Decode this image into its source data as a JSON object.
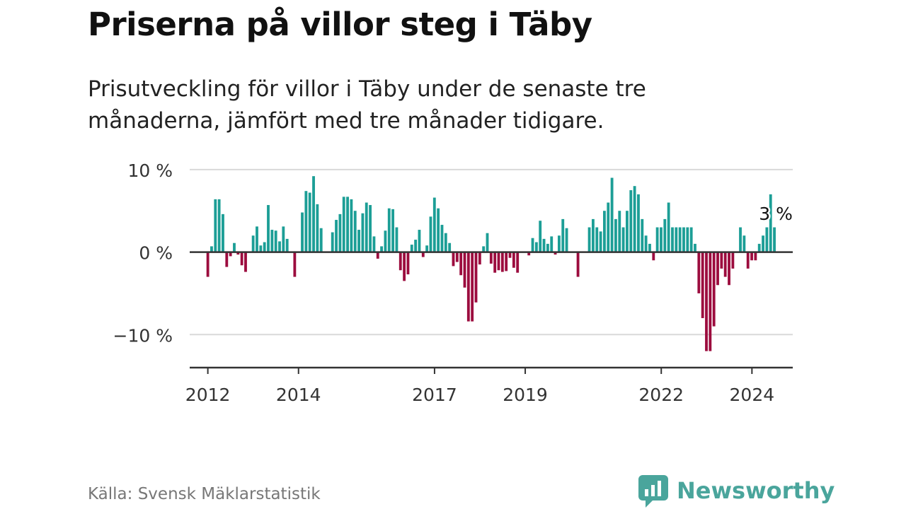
{
  "title": "Priserna på villor steg i Täby",
  "subtitle": "Prisutveckling för villor i Täby under de senaste tre månaderna, jämfört med tre månader tidigare.",
  "source": "Källa: Svensk Mäklarstatistik",
  "brand": "Newsworthy",
  "colors": {
    "positive": "#1c9e96",
    "negative": "#9c0c3e",
    "grid": "#d9d9d9",
    "axis": "#333333",
    "brand": "#4aa59c"
  },
  "chart_data": {
    "type": "bar",
    "unit": "%",
    "ylim": [
      -14,
      10.5
    ],
    "yticks": [
      {
        "value": 10,
        "label": "10 %"
      },
      {
        "value": 0,
        "label": "0 %"
      },
      {
        "value": -10,
        "label": "−10 %"
      }
    ],
    "xstart": 2012.0,
    "xstep": 0.0833,
    "xlim": [
      2011.6,
      2024.9
    ],
    "xticks": [
      {
        "value": 2012,
        "label": "2012"
      },
      {
        "value": 2014,
        "label": "2014"
      },
      {
        "value": 2017,
        "label": "2017"
      },
      {
        "value": 2019,
        "label": "2019"
      },
      {
        "value": 2022,
        "label": "2022"
      },
      {
        "value": 2024,
        "label": "2024"
      }
    ],
    "values": [
      -3.0,
      0.7,
      6.4,
      6.4,
      4.6,
      -1.8,
      -0.5,
      1.1,
      -0.3,
      -1.6,
      -2.4,
      0.0,
      2.0,
      3.1,
      0.8,
      1.2,
      5.7,
      2.7,
      2.6,
      1.3,
      3.1,
      1.6,
      0.0,
      -3.0,
      0.0,
      4.8,
      7.4,
      7.2,
      9.2,
      5.8,
      2.9,
      0.0,
      0.0,
      2.4,
      3.9,
      4.6,
      6.7,
      6.7,
      6.4,
      5.0,
      2.7,
      4.7,
      6.0,
      5.7,
      1.9,
      -0.8,
      0.7,
      2.6,
      5.3,
      5.2,
      3.0,
      -2.2,
      -3.5,
      -2.7,
      0.9,
      1.5,
      2.7,
      -0.6,
      0.8,
      4.3,
      6.6,
      5.3,
      3.3,
      2.3,
      1.1,
      -1.7,
      -1.2,
      -2.8,
      -4.3,
      -8.4,
      -8.4,
      -6.1,
      -1.5,
      0.7,
      2.3,
      -1.4,
      -2.5,
      -2.2,
      -2.4,
      -2.3,
      -0.7,
      -1.9,
      -2.5,
      0.0,
      0.0,
      -0.4,
      1.7,
      1.2,
      3.8,
      1.6,
      1.0,
      1.9,
      -0.3,
      2.0,
      4.0,
      2.9,
      0.0,
      0.0,
      -3.0,
      0.0,
      0.0,
      3.0,
      4.0,
      3.0,
      2.5,
      5.0,
      6.0,
      9.0,
      4.0,
      5.0,
      3.0,
      5.0,
      7.5,
      8.0,
      7.0,
      4.0,
      2.0,
      1.0,
      -1.0,
      3.0,
      3.0,
      4.0,
      6.0,
      3.0,
      3.0,
      3.0,
      3.0,
      3.0,
      3.0,
      1.0,
      -5.0,
      -8.0,
      -12.0,
      -12.0,
      -9.0,
      -4.0,
      -2.0,
      -3.0,
      -4.0,
      -2.0,
      0.0,
      3.0,
      2.0,
      -2.0,
      -1.0,
      -1.0,
      1.0,
      2.0,
      3.0,
      7.0,
      3.0
    ],
    "annotation": {
      "label": "3 %",
      "index": 150
    }
  }
}
